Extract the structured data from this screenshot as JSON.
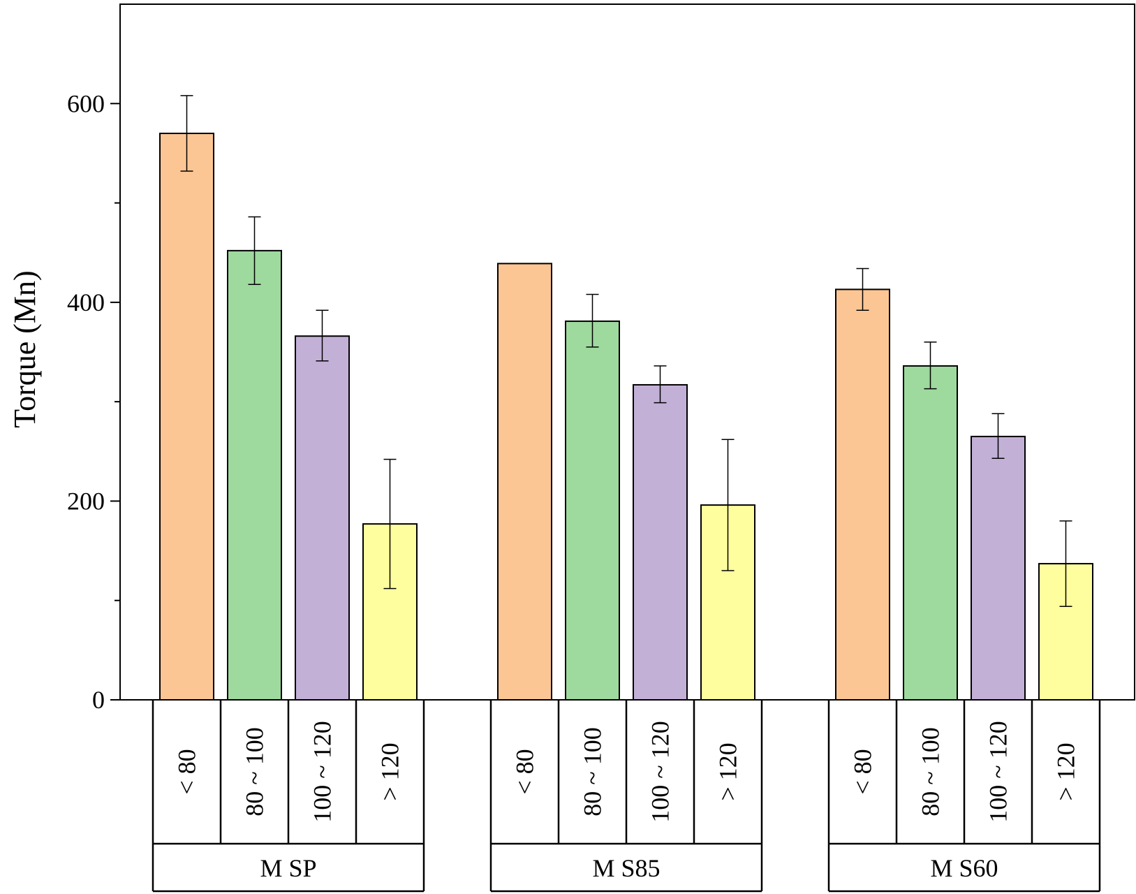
{
  "chart_data": {
    "type": "bar",
    "title": "",
    "xlabel": "",
    "ylabel": "Torque (Mn)",
    "ylim": [
      0,
      700
    ],
    "yticks": [
      0,
      200,
      400,
      600
    ],
    "grid": false,
    "legend": "none",
    "categories": [
      "< 80",
      "80 ~ 100",
      "100 ~ 120",
      "> 120"
    ],
    "groups": [
      {
        "name": "M SP",
        "values": [
          570,
          452,
          366,
          177
        ],
        "errors": [
          [
            532,
            608
          ],
          [
            418,
            486
          ],
          [
            341,
            392
          ],
          [
            112,
            242
          ]
        ]
      },
      {
        "name": "M S85",
        "values": [
          439,
          381,
          317,
          196
        ],
        "errors": [
          null,
          [
            355,
            408
          ],
          [
            299,
            336
          ],
          [
            130,
            262
          ]
        ]
      },
      {
        "name": "M S60",
        "values": [
          413,
          336,
          265,
          137
        ],
        "errors": [
          [
            392,
            434
          ],
          [
            313,
            360
          ],
          [
            243,
            288
          ],
          [
            94,
            180
          ]
        ]
      }
    ],
    "colors": [
      "#fcc694",
      "#9ed99e",
      "#c3b0d7",
      "#fefe9e"
    ]
  }
}
